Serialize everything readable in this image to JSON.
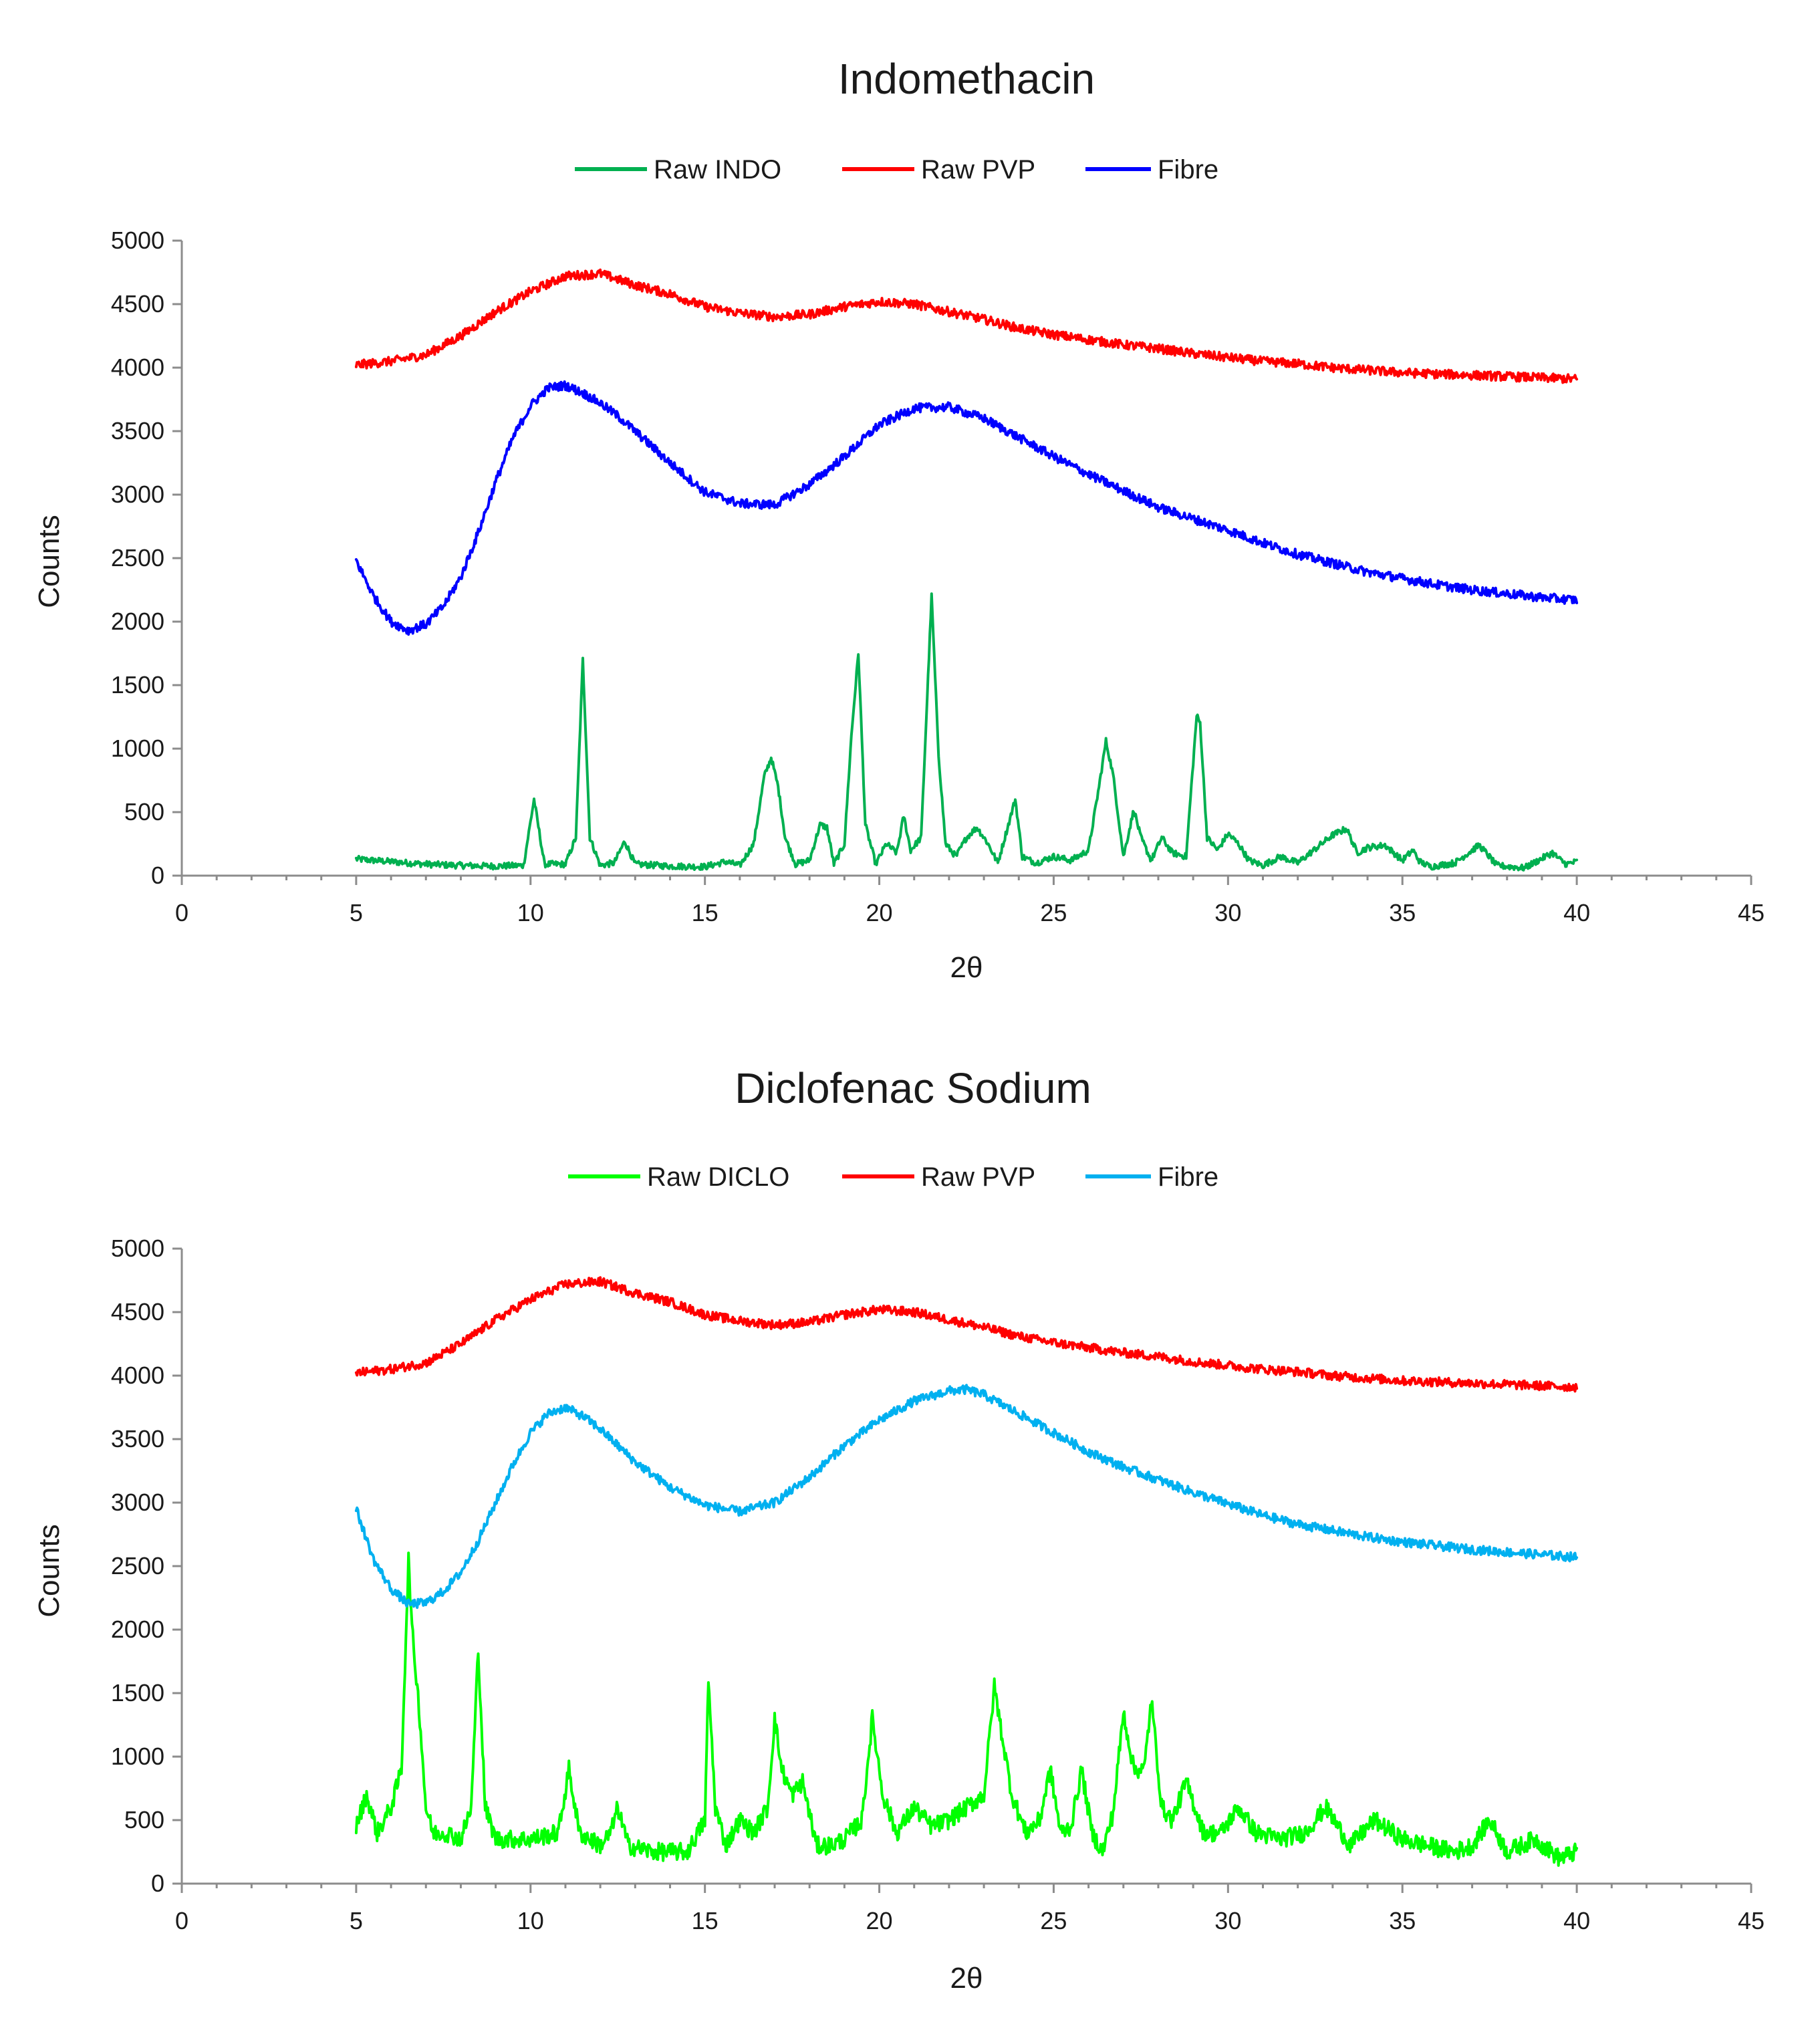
{
  "chart_data": [
    {
      "type": "line",
      "title": "Indomethacin",
      "xlabel": "2θ",
      "ylabel": "Counts",
      "xlim": [
        0,
        45
      ],
      "ylim": [
        0,
        5000
      ],
      "x_ticks": [
        0,
        5,
        10,
        15,
        20,
        25,
        30,
        35,
        40,
        45
      ],
      "y_ticks": [
        0,
        500,
        1000,
        1500,
        2000,
        2500,
        3000,
        3500,
        4000,
        4500,
        5000
      ],
      "grid": false,
      "legend": "top-center",
      "series": [
        {
          "name": "Raw INDO",
          "color": "#00b050",
          "x": [
            5,
            6,
            7,
            8,
            9,
            9.8,
            10.1,
            10.4,
            11,
            11.3,
            11.5,
            11.7,
            12,
            12.4,
            12.7,
            13,
            14,
            15,
            15.6,
            16,
            16.4,
            16.7,
            16.9,
            17.1,
            17.3,
            17.6,
            18,
            18.3,
            18.5,
            18.7,
            19,
            19.2,
            19.4,
            19.6,
            19.9,
            20.2,
            20.5,
            20.7,
            20.9,
            21.2,
            21.5,
            21.7,
            21.9,
            22.2,
            22.5,
            22.8,
            23.1,
            23.4,
            23.7,
            23.9,
            24.1,
            24.5,
            25,
            25.5,
            26,
            26.3,
            26.5,
            26.7,
            27,
            27.3,
            27.5,
            27.8,
            28.1,
            28.4,
            28.8,
            29.1,
            29.2,
            29.4,
            29.7,
            30,
            30.3,
            30.6,
            31,
            31.5,
            32,
            33,
            33.4,
            33.7,
            34,
            34.5,
            35,
            35.3,
            35.5,
            35.8,
            36.5,
            37.2,
            37.4,
            37.7,
            38.5,
            39.3,
            39.5,
            39.7,
            40
          ],
          "values": [
            130,
            110,
            90,
            80,
            75,
            80,
            600,
            90,
            90,
            300,
            1700,
            300,
            80,
            100,
            270,
            90,
            75,
            70,
            110,
            80,
            250,
            780,
            930,
            700,
            300,
            90,
            120,
            400,
            380,
            90,
            250,
            1100,
            1750,
            400,
            90,
            250,
            180,
            470,
            200,
            300,
            2200,
            950,
            250,
            150,
            300,
            380,
            260,
            100,
            400,
            600,
            150,
            100,
            150,
            120,
            200,
            700,
            1060,
            800,
            150,
            520,
            300,
            120,
            300,
            180,
            150,
            1260,
            1200,
            300,
            200,
            330,
            250,
            120,
            80,
            150,
            100,
            320,
            370,
            180,
            220,
            240,
            120,
            200,
            110,
            70,
            100,
            240,
            180,
            80,
            60,
            180,
            130,
            90,
            110
          ]
        },
        {
          "name": "Raw PVP",
          "color": "#ff0000",
          "x": [
            5,
            6,
            7,
            8,
            9,
            10,
            11,
            12,
            13,
            14,
            15,
            16,
            17,
            18,
            19,
            20,
            21,
            22,
            23,
            24,
            25,
            26,
            27,
            28,
            29,
            30,
            31,
            32,
            33,
            34,
            35,
            36,
            37,
            38,
            39,
            40
          ],
          "values": [
            4020,
            4050,
            4100,
            4250,
            4440,
            4600,
            4720,
            4740,
            4650,
            4580,
            4480,
            4430,
            4400,
            4420,
            4480,
            4520,
            4500,
            4440,
            4380,
            4310,
            4260,
            4220,
            4180,
            4150,
            4110,
            4080,
            4050,
            4030,
            4000,
            3980,
            3960,
            3950,
            3940,
            3930,
            3920,
            3910
          ]
        },
        {
          "name": "Fibre",
          "color": "#0000ff",
          "x": [
            5,
            5.5,
            6,
            6.5,
            7,
            7.5,
            8,
            8.5,
            9,
            9.5,
            10,
            10.5,
            11,
            11.5,
            12,
            12.5,
            13,
            14,
            15,
            16,
            17,
            18,
            19,
            20,
            21,
            22,
            23,
            24,
            25,
            26,
            27,
            28,
            29,
            30,
            31,
            32,
            33,
            34,
            35,
            36,
            37,
            38,
            39,
            40
          ],
          "values": [
            2480,
            2200,
            2000,
            1930,
            1980,
            2120,
            2350,
            2700,
            3100,
            3450,
            3700,
            3840,
            3860,
            3800,
            3720,
            3620,
            3500,
            3250,
            3020,
            2930,
            2920,
            3080,
            3300,
            3550,
            3680,
            3690,
            3600,
            3450,
            3300,
            3160,
            3030,
            2900,
            2810,
            2720,
            2620,
            2530,
            2460,
            2390,
            2340,
            2290,
            2250,
            2220,
            2190,
            2170
          ]
        }
      ]
    },
    {
      "type": "line",
      "title": "Diclofenac Sodium",
      "xlabel": "2θ",
      "ylabel": "Counts",
      "xlim": [
        0,
        45
      ],
      "ylim": [
        0,
        5000
      ],
      "x_ticks": [
        0,
        5,
        10,
        15,
        20,
        25,
        30,
        35,
        40,
        45
      ],
      "y_ticks": [
        0,
        500,
        1000,
        1500,
        2000,
        2500,
        3000,
        3500,
        4000,
        4500,
        5000
      ],
      "grid": false,
      "legend": "top-center",
      "series": [
        {
          "name": "Raw DICLO",
          "color": "#00ff00",
          "x": [
            5,
            5.3,
            5.6,
            6,
            6.3,
            6.5,
            6.6,
            6.8,
            7,
            7.2,
            7.6,
            8,
            8.3,
            8.5,
            8.7,
            9,
            10,
            10.8,
            11.1,
            11.4,
            12,
            12.3,
            12.5,
            12.8,
            13.5,
            14.5,
            15,
            15.1,
            15.3,
            15.6,
            16,
            16.4,
            16.8,
            17,
            17.2,
            17.5,
            17.8,
            18.2,
            18.6,
            19,
            19.5,
            19.8,
            20.1,
            20.5,
            21,
            21.5,
            22,
            22.5,
            23,
            23.3,
            23.5,
            23.8,
            24.2,
            24.6,
            24.9,
            25.2,
            25.5,
            25.8,
            26.1,
            26.4,
            26.7,
            27,
            27.3,
            27.6,
            27.8,
            28.1,
            28.4,
            28.8,
            29.3,
            29.8,
            30.3,
            30.8,
            31.5,
            32.2,
            32.8,
            33.5,
            34.2,
            35,
            35.7,
            36.5,
            37,
            37.5,
            38,
            38.8,
            39.5,
            40
          ],
          "values": [
            450,
            700,
            400,
            600,
            900,
            2550,
            2000,
            1400,
            600,
            400,
            400,
            350,
            600,
            1850,
            600,
            350,
            350,
            400,
            900,
            400,
            300,
            400,
            600,
            300,
            250,
            250,
            500,
            1600,
            600,
            300,
            500,
            400,
            600,
            1300,
            900,
            700,
            800,
            300,
            300,
            350,
            500,
            1300,
            700,
            400,
            600,
            450,
            500,
            600,
            700,
            1550,
            1200,
            700,
            400,
            500,
            900,
            400,
            450,
            900,
            400,
            250,
            550,
            1350,
            900,
            900,
            1450,
            600,
            500,
            800,
            400,
            400,
            600,
            400,
            350,
            400,
            600,
            300,
            500,
            350,
            300,
            250,
            300,
            500,
            250,
            350,
            200,
            250
          ]
        },
        {
          "name": "Raw PVP",
          "color": "#ff0000",
          "x": [
            5,
            6,
            7,
            8,
            9,
            10,
            11,
            12,
            13,
            14,
            15,
            16,
            17,
            18,
            19,
            20,
            21,
            22,
            23,
            24,
            25,
            26,
            27,
            28,
            29,
            30,
            31,
            32,
            33,
            34,
            35,
            36,
            37,
            38,
            39,
            40
          ],
          "values": [
            4020,
            4050,
            4100,
            4250,
            4440,
            4600,
            4720,
            4740,
            4650,
            4580,
            4480,
            4430,
            4400,
            4420,
            4480,
            4520,
            4500,
            4440,
            4380,
            4310,
            4260,
            4220,
            4180,
            4150,
            4110,
            4080,
            4050,
            4030,
            4000,
            3980,
            3960,
            3950,
            3940,
            3930,
            3920,
            3910
          ]
        },
        {
          "name": "Fibre",
          "color": "#00b0f0",
          "x": [
            5,
            5.5,
            6,
            6.5,
            7,
            7.5,
            8,
            8.5,
            9,
            9.5,
            10,
            10.5,
            11,
            11.5,
            12,
            12.5,
            13,
            14,
            15,
            16,
            17,
            18,
            19,
            20,
            21,
            22,
            22.5,
            23,
            24,
            25,
            26,
            27,
            28,
            29,
            30,
            31,
            32,
            33,
            34,
            35,
            36,
            37,
            38,
            39,
            40
          ],
          "values": [
            2950,
            2550,
            2320,
            2200,
            2210,
            2300,
            2450,
            2700,
            3000,
            3300,
            3550,
            3700,
            3750,
            3680,
            3580,
            3450,
            3320,
            3120,
            2980,
            2930,
            3000,
            3200,
            3450,
            3650,
            3800,
            3880,
            3890,
            3850,
            3700,
            3550,
            3400,
            3280,
            3180,
            3080,
            2990,
            2900,
            2830,
            2780,
            2730,
            2690,
            2660,
            2630,
            2610,
            2590,
            2570
          ]
        }
      ]
    }
  ]
}
